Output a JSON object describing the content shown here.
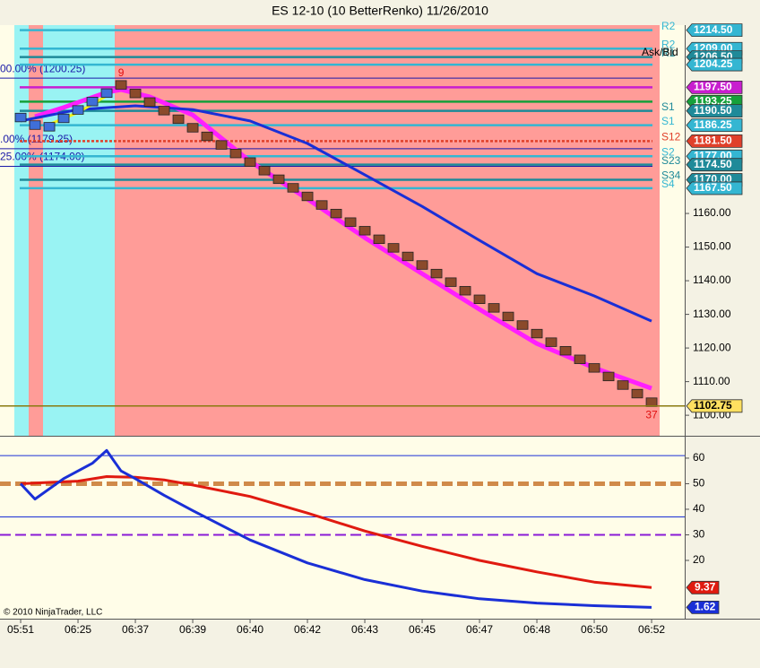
{
  "title": "ES 12-10 (10 BetterRenko)  11/26/2010",
  "copyright": "© 2010 NinjaTrader, LLC",
  "chart_data": [
    {
      "type": "renko",
      "xlim": [
        -1.44,
        46.31
      ],
      "xticks": [
        {
          "value": 0,
          "label": "05:51"
        },
        {
          "value": 4,
          "label": "06:25"
        },
        {
          "value": 8,
          "label": "06:37"
        },
        {
          "value": 12,
          "label": "06:39"
        },
        {
          "value": 16,
          "label": "06:40"
        },
        {
          "value": 20,
          "label": "06:42"
        },
        {
          "value": 24,
          "label": "06:43"
        },
        {
          "value": 28,
          "label": "06:45"
        },
        {
          "value": 32,
          "label": "06:47"
        },
        {
          "value": 36,
          "label": "06:48"
        },
        {
          "value": 40,
          "label": "06:50"
        },
        {
          "value": 44,
          "label": "06:52"
        }
      ],
      "ylim": [
        1093.9,
        1216
      ],
      "yticks": [
        {
          "value": 1100,
          "label": "1100.00"
        },
        {
          "value": 1110,
          "label": "1110.00"
        },
        {
          "value": 1120,
          "label": "1120.00"
        },
        {
          "value": 1130,
          "label": "1130.00"
        },
        {
          "value": 1140,
          "label": "1140.00"
        },
        {
          "value": 1150,
          "label": "1150.00"
        },
        {
          "value": 1160,
          "label": "1160.00"
        }
      ],
      "bricks": {
        "x": [
          0,
          1,
          2,
          3,
          4,
          5,
          6,
          7,
          8,
          9,
          10,
          11,
          12,
          13,
          14,
          15,
          16,
          17,
          18,
          19,
          20,
          21,
          22,
          23,
          24,
          25,
          26,
          27,
          28,
          29,
          30,
          31,
          32,
          33,
          34,
          35,
          36,
          37,
          38,
          39,
          40,
          41,
          42,
          43,
          44
        ],
        "open": [
          1187.25,
          1185,
          1184.5,
          1187,
          1189.5,
          1192,
          1194.5,
          1199.5,
          1196.95,
          1194.4,
          1191.85,
          1189.3,
          1186.75,
          1184.2,
          1181.65,
          1179.1,
          1176.55,
          1174,
          1171.45,
          1168.9,
          1166.35,
          1163.8,
          1161.25,
          1158.7,
          1156.15,
          1153.6,
          1151.05,
          1148.5,
          1145.95,
          1143.4,
          1140.85,
          1138.3,
          1135.75,
          1133.2,
          1130.65,
          1128.1,
          1125.55,
          1123,
          1120.45,
          1117.9,
          1115.35,
          1112.8,
          1110.25,
          1107.7,
          1105.15
        ],
        "close": [
          1189.8,
          1187.55,
          1187.05,
          1189.55,
          1192.05,
          1194.55,
          1197.05,
          1196.95,
          1194.4,
          1191.85,
          1189.3,
          1186.75,
          1184.2,
          1181.65,
          1179.1,
          1176.55,
          1174,
          1171.45,
          1168.9,
          1166.35,
          1163.8,
          1161.25,
          1158.7,
          1156.15,
          1153.6,
          1151.05,
          1148.5,
          1145.95,
          1143.4,
          1140.85,
          1138.3,
          1135.75,
          1133.2,
          1130.65,
          1128.1,
          1125.55,
          1123,
          1120.45,
          1117.9,
          1115.35,
          1112.8,
          1110.25,
          1107.7,
          1105.15,
          1102.6
        ],
        "up_color": "#3f6fd8",
        "down_color": "#8b4a2b"
      },
      "series": [
        {
          "color": "#ff1fff",
          "x": [
            1,
            3,
            6,
            7,
            9,
            12,
            16,
            20,
            24,
            28,
            32,
            36,
            40,
            44
          ],
          "values": [
            1188.8,
            1191.5,
            1196,
            1196.8,
            1194.7,
            1189.3,
            1175.5,
            1164.3,
            1152.8,
            1142.1,
            1131.5,
            1121.3,
            1114.1,
            1108
          ]
        },
        {
          "color": "#1a2fd6",
          "x": [
            0,
            4,
            8,
            12,
            16,
            20,
            24,
            28,
            32,
            36,
            40,
            44
          ],
          "values": [
            1187.5,
            1190.9,
            1192,
            1190.9,
            1187.5,
            1180.8,
            1171.5,
            1162.1,
            1152,
            1142.1,
            1135.5,
            1128
          ]
        },
        {
          "color": "#f2f21a",
          "x": [
            2,
            4,
            6
          ],
          "values": [
            1186.5,
            1190,
            1195
          ]
        }
      ],
      "levels": {
        "names": [
          "R2",
          "R2",
          "R1",
          null,
          null,
          null,
          "S1",
          "S1",
          "S12",
          "S2",
          "S23",
          "S34",
          "S4"
        ],
        "values": [
          1214.5,
          1209,
          1206.5,
          1204.25,
          1197.5,
          1193.25,
          1190.5,
          1186.25,
          1181.5,
          1177,
          1174.5,
          1170,
          1167.5
        ],
        "value_labels": [
          "1214.50",
          "1209.00",
          "1206.50",
          "1204.25",
          "1197.50",
          "1193.25",
          "1190.50",
          "1186.25",
          "1181.50",
          "1177.00",
          "1174.50",
          "1170.00",
          "1167.50"
        ],
        "colors": [
          "#34b6d2",
          "#34b6d2",
          "#1f8a99",
          "#34b6d2",
          "#c81ecf",
          "#16a03a",
          "#1f8a99",
          "#34b6d2",
          "#e0402a",
          "#34b6d2",
          "#1f8a99",
          "#1f8a99",
          "#34b6d2"
        ]
      },
      "fib_levels": {
        "values": [
          1200.25,
          1179.25,
          1174
        ],
        "value_labels": [
          "00.00% (1200.25)",
          ".00% (1179.25)",
          "25.00% (1174.00)"
        ]
      },
      "last_price": 1102.75,
      "annotations": [
        {
          "text": "9",
          "x": 7
        },
        {
          "text": "37",
          "x": 44
        }
      ],
      "ask_bid_label": "Ask/Bid"
    },
    {
      "type": "line",
      "ylim": [
        -2.8,
        68.4
      ],
      "yticks": [
        20,
        30,
        40,
        50,
        60
      ],
      "hlines": [
        {
          "value": 61,
          "color": "#1a2fd6",
          "style": "solid"
        },
        {
          "value": 37,
          "color": "#1a2fd6",
          "style": "solid"
        },
        {
          "value": 50,
          "color": "#d08a4a",
          "style": "dashed"
        },
        {
          "value": 30,
          "color": "#8a1ad6",
          "style": "dashed"
        }
      ],
      "series": [
        {
          "color": "#e01a10",
          "x": [
            0,
            2,
            4,
            6,
            8,
            10,
            12,
            16,
            20,
            24,
            28,
            32,
            36,
            40,
            44
          ],
          "values": [
            50,
            50.5,
            51,
            52.8,
            52.5,
            51.5,
            49.5,
            45,
            38.5,
            31.5,
            25.5,
            20,
            15.5,
            11.5,
            9.37
          ]
        },
        {
          "color": "#1a2fd6",
          "x": [
            0,
            1,
            3,
            5,
            6,
            7,
            8,
            10,
            12,
            16,
            20,
            24,
            28,
            32,
            36,
            40,
            44
          ],
          "values": [
            50,
            44,
            52,
            58,
            63,
            55,
            52,
            45.5,
            39.5,
            28,
            19,
            12.5,
            8,
            5,
            3.3,
            2.3,
            1.62
          ]
        }
      ]
    }
  ]
}
